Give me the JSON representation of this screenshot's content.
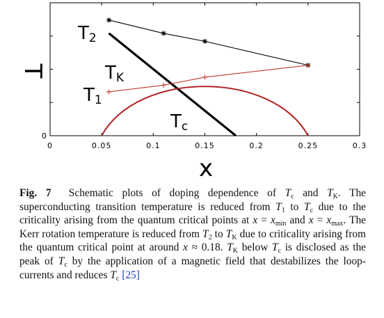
{
  "chart_data": {
    "type": "line",
    "xlabel": "x",
    "ylabel": "T",
    "xlim": [
      0,
      0.3
    ],
    "ylim": [
      0,
      1
    ],
    "x_ticks": [
      "0",
      "0.05",
      "0.1",
      "0.15",
      "0.2",
      "0.25",
      "0.3"
    ],
    "y_ticks": [
      "0"
    ],
    "series": [
      {
        "name": "T2",
        "label_main": "T",
        "label_sub": "2",
        "color": "#000000",
        "marker": "star",
        "points": [
          [
            0.057,
            0.87
          ],
          [
            0.11,
            0.77
          ],
          [
            0.15,
            0.71
          ],
          [
            0.25,
            0.53
          ]
        ]
      },
      {
        "name": "TK",
        "label_main": "T",
        "label_sub": "K",
        "color": "#000000",
        "marker": "none",
        "points": [
          [
            0.057,
            0.77
          ],
          [
            0.18,
            0.0
          ]
        ]
      },
      {
        "name": "T1",
        "label_main": "T",
        "label_sub": "1",
        "color": "#c0392b",
        "marker": "plus",
        "points": [
          [
            0.057,
            0.33
          ],
          [
            0.11,
            0.38
          ],
          [
            0.15,
            0.44
          ],
          [
            0.25,
            0.53
          ]
        ]
      },
      {
        "name": "Tc",
        "label_main": "T",
        "label_sub": "c",
        "color": "#b22222",
        "marker": "none",
        "dome": {
          "x_min": 0.05,
          "x_max": 0.25,
          "peak_x": 0.15,
          "peak_y": 0.26
        }
      }
    ]
  },
  "caption": {
    "fig_label": "Fig. 7",
    "p1": "Schematic plots of doping dependence of ",
    "p2": " and ",
    "p3": ". The superconducting transition temperature is reduced from ",
    "p4": " to ",
    "p5": " due to the criticality arising from the quantum critical points at ",
    "p6": " and ",
    "p7": ". The Kerr rotation temperature is reduced from ",
    "p8": " to ",
    "p9": " due to criticality arising from the quantum critical point at around ",
    "p10": ". ",
    "p11": " below ",
    "p12": " is disclosed as the peak of ",
    "p13": " by the application of a magnetic field that destabilizes the loop-currents and reduces ",
    "ref": "[25]",
    "m_T": "T",
    "s_c": "c",
    "s_K": "K",
    "s_1": "1",
    "s_2": "2",
    "m_x": "x",
    "eq": " = ",
    "m_xmin": "x",
    "s_min": "min",
    "s_max": "max",
    "approx": " ≈ 0.18"
  }
}
